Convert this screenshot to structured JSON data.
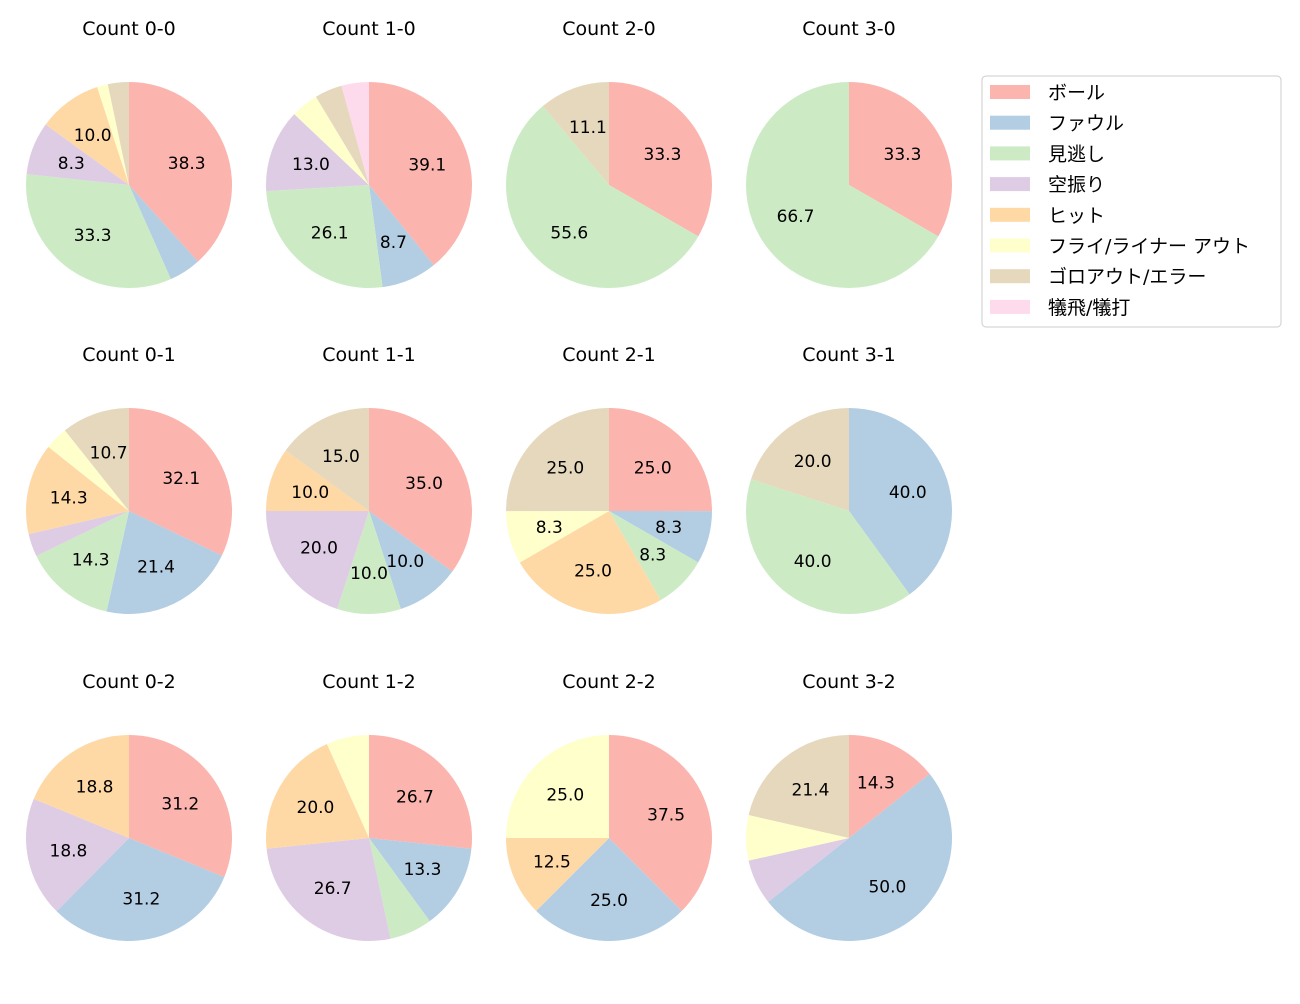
{
  "chart_data": {
    "type": "pie",
    "categories": [
      "ボール",
      "ファウル",
      "見逃し",
      "空振り",
      "ヒット",
      "フライ/ライナー アウト",
      "ゴロアウト/エラー",
      "犠飛/犠打"
    ],
    "colors": [
      "#fbb4ae",
      "#b3cde3",
      "#ccebc5",
      "#decbe4",
      "#fed9a6",
      "#ffffcc",
      "#e5d8bd",
      "#fddaec"
    ],
    "start_angle_deg": 90,
    "direction": "clockwise",
    "label_format": "%1.1f",
    "legend_placement": "upper-right",
    "pies": [
      {
        "title": "Count 0-0",
        "values": [
          38.3,
          5.0,
          33.3,
          8.3,
          10.0,
          1.7,
          3.3,
          0
        ]
      },
      {
        "title": "Count 1-0",
        "values": [
          39.1,
          8.7,
          26.1,
          13.0,
          0,
          4.3,
          4.3,
          4.3
        ]
      },
      {
        "title": "Count 2-0",
        "values": [
          33.3,
          0,
          55.6,
          0,
          0,
          0,
          11.1,
          0
        ]
      },
      {
        "title": "Count 3-0",
        "values": [
          33.3,
          0,
          66.7,
          0,
          0,
          0,
          0,
          0
        ]
      },
      {
        "title": "Count 0-1",
        "values": [
          32.1,
          21.4,
          14.3,
          3.6,
          14.3,
          3.6,
          10.7,
          0
        ]
      },
      {
        "title": "Count 1-1",
        "values": [
          35.0,
          10.0,
          10.0,
          20.0,
          10.0,
          0,
          15.0,
          0
        ]
      },
      {
        "title": "Count 2-1",
        "values": [
          25.0,
          8.3,
          8.3,
          0,
          25.0,
          8.3,
          25.0,
          0
        ]
      },
      {
        "title": "Count 3-1",
        "values": [
          0,
          40.0,
          40.0,
          0,
          0,
          0,
          20.0,
          0
        ]
      },
      {
        "title": "Count 0-2",
        "values": [
          31.2,
          31.2,
          0,
          18.8,
          18.8,
          0,
          0,
          0
        ]
      },
      {
        "title": "Count 1-2",
        "values": [
          26.7,
          13.3,
          6.7,
          26.7,
          20.0,
          6.7,
          0,
          0
        ]
      },
      {
        "title": "Count 2-2",
        "values": [
          37.5,
          25.0,
          0,
          0,
          12.5,
          25.0,
          0,
          0
        ]
      },
      {
        "title": "Count 3-2",
        "values": [
          14.3,
          50.0,
          0,
          7.1,
          0,
          7.1,
          21.4,
          0
        ]
      }
    ]
  }
}
